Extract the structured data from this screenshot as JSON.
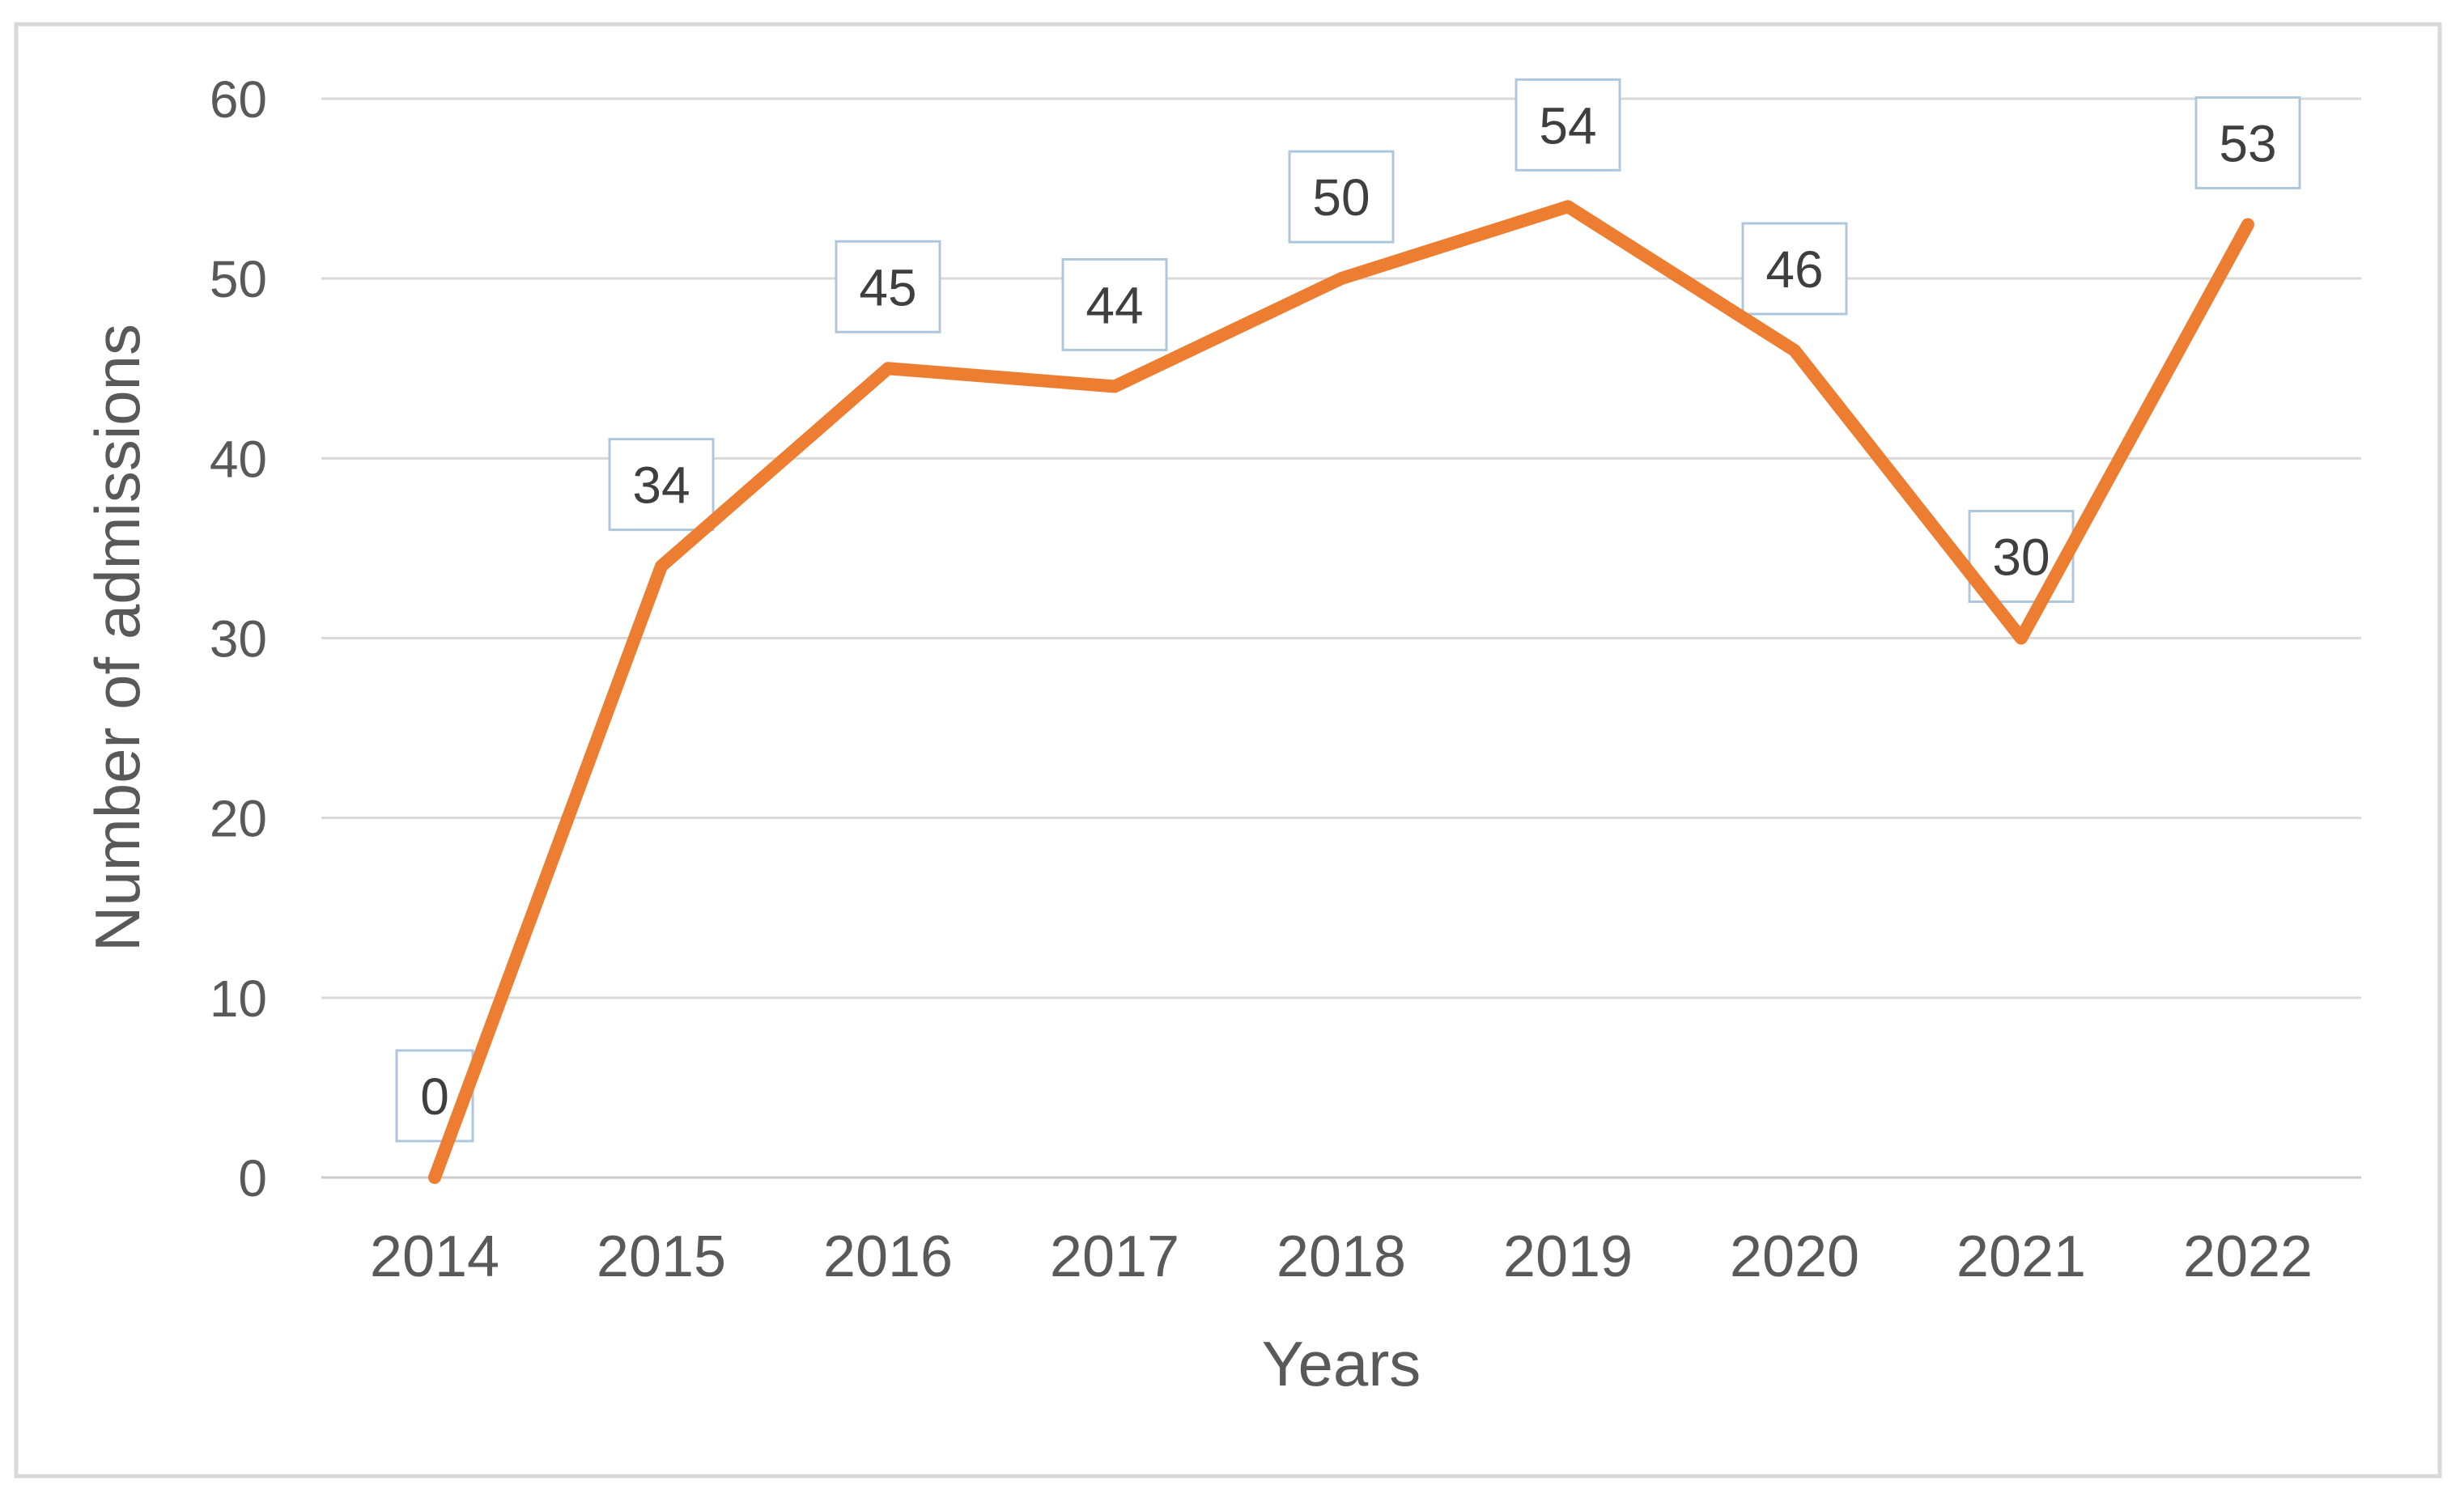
{
  "chart_data": {
    "type": "line",
    "title": "",
    "categories": [
      "2014",
      "2015",
      "2016",
      "2017",
      "2018",
      "2019",
      "2020",
      "2021",
      "2022"
    ],
    "values": [
      0,
      34,
      45,
      44,
      50,
      54,
      46,
      30,
      53
    ],
    "series": [
      {
        "name": "Number of admissions",
        "values": [
          0,
          34,
          45,
          44,
          50,
          54,
          46,
          30,
          53
        ]
      }
    ],
    "xlabel": "Years",
    "ylabel": "Number of admissions",
    "ylim": [
      0,
      60
    ],
    "yticks": [
      0,
      10,
      20,
      30,
      40,
      50,
      60
    ],
    "ytick_step": 10,
    "grid": true,
    "legend": "none",
    "data_labels_shown": true,
    "colors": {
      "series_line": "#ED7D31",
      "gridline": "#D9D9D9",
      "axis_line": "#C9C9C9",
      "tick_text": "#595959",
      "title_text": "#595959",
      "data_label_text": "#3F3F3F",
      "data_label_box_border": "#AFC7DC",
      "data_label_box_fill": "#FFFFFF",
      "chart_border": "#D9D9D9",
      "background": "#FFFFFF"
    }
  }
}
